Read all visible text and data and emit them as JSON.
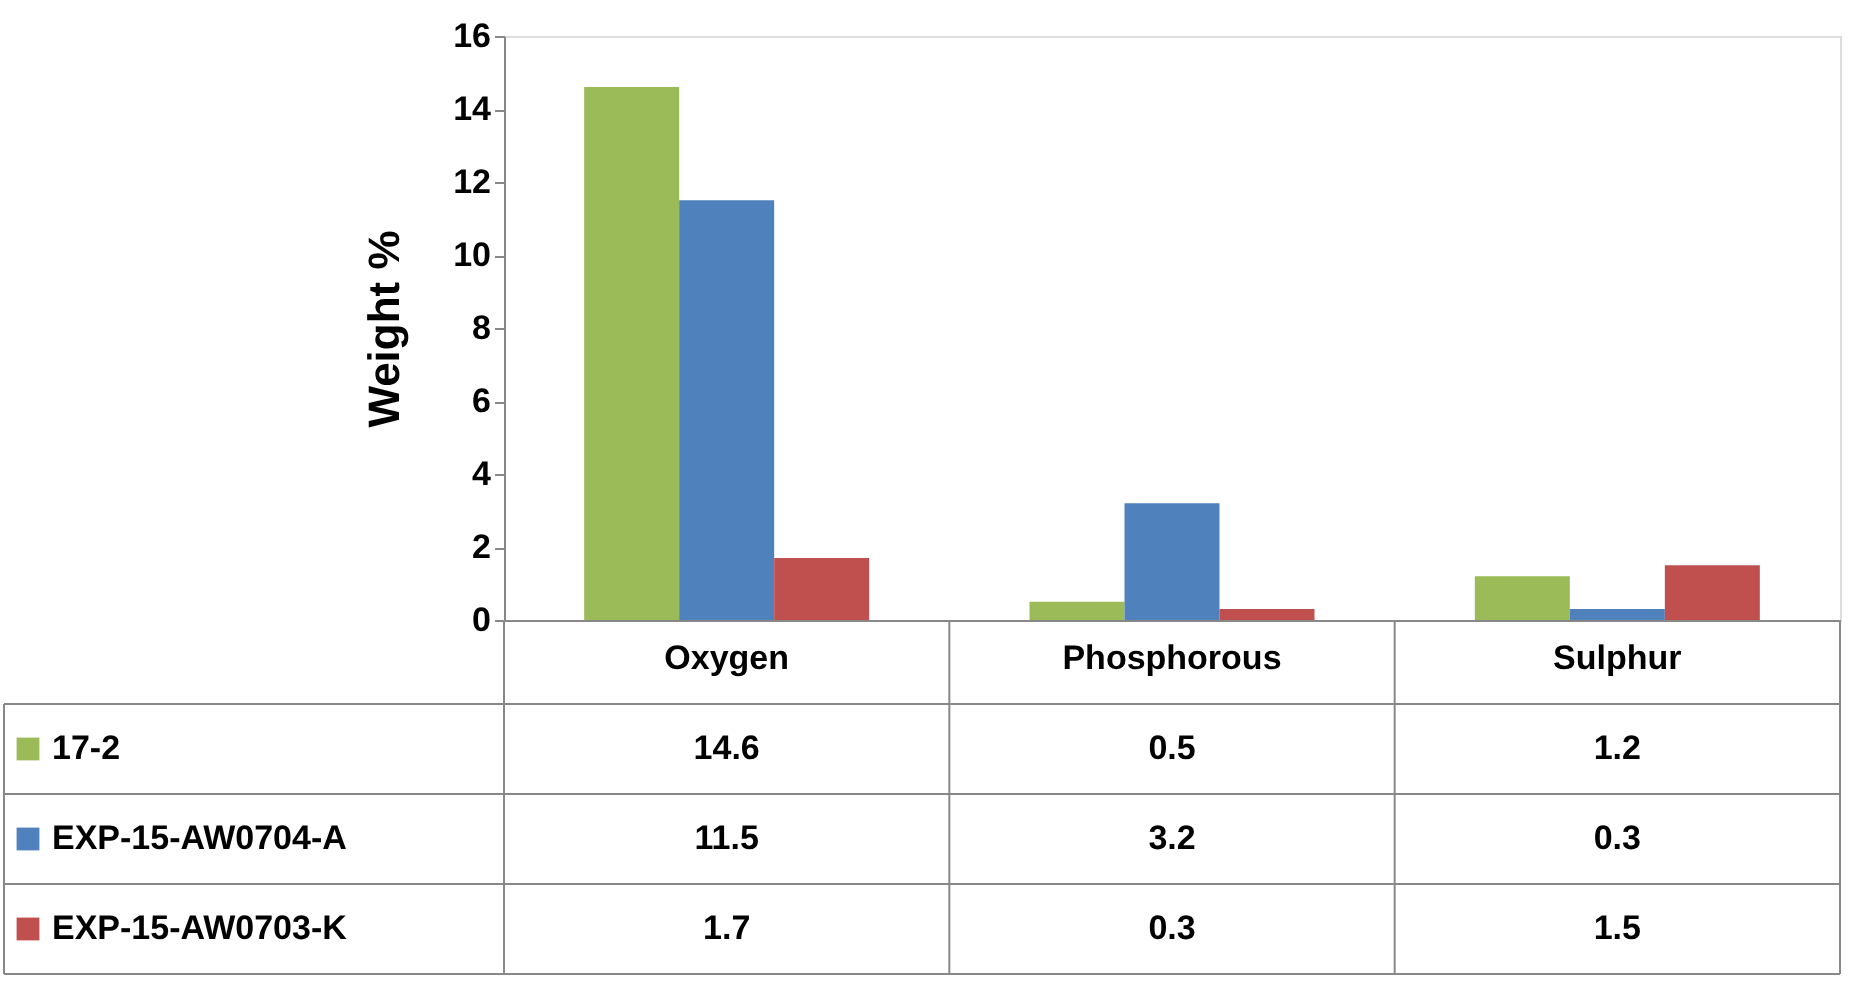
{
  "chart_data": {
    "type": "bar",
    "ylabel": "Weight %",
    "categories": [
      "Oxygen",
      "Phosphorous",
      "Sulphur"
    ],
    "series": [
      {
        "name": "17-2",
        "color": "#9bbb59",
        "values": [
          14.6,
          0.5,
          1.2
        ]
      },
      {
        "name": "EXP-15-AW0704-A",
        "color": "#4f81bd",
        "values": [
          11.5,
          3.2,
          0.3
        ]
      },
      {
        "name": "EXP-15-AW0703-K",
        "color": "#c0504d",
        "values": [
          1.7,
          0.3,
          1.5
        ]
      }
    ],
    "ylim": [
      0,
      16
    ],
    "yticks": [
      0,
      2,
      4,
      6,
      8,
      10,
      12,
      14,
      16
    ],
    "grid": false,
    "data_labels": true,
    "legend": "bottom"
  }
}
